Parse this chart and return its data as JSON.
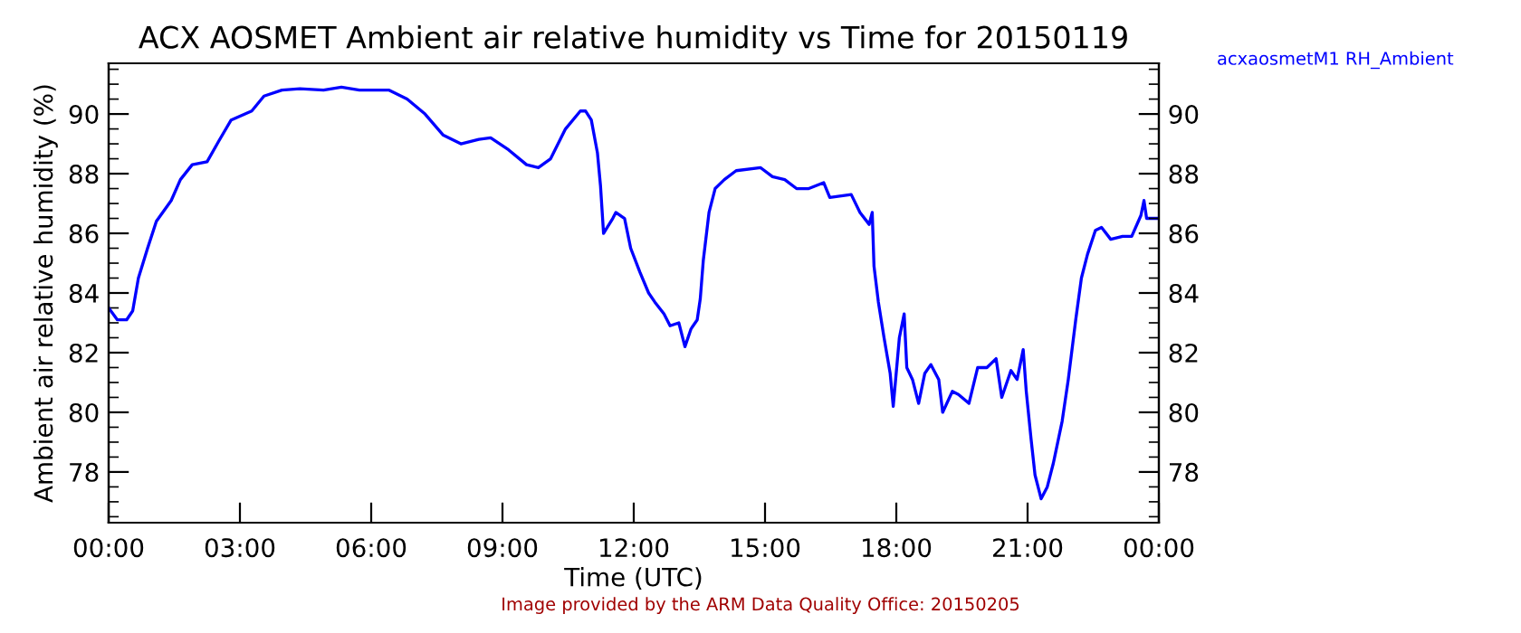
{
  "chart_data": {
    "type": "line",
    "title": "ACX AOSMET Ambient air relative humidity vs Time for 20150119",
    "xlabel": "Time (UTC)",
    "ylabel": "Ambient air relative humidity (%)",
    "annotations": [
      "Image provided by the ARM Data Quality Office: 20150205"
    ],
    "series": [
      {
        "name": "acxaosmetM1 RH_Ambient",
        "color": "#0000ff",
        "x": [
          0,
          0.2,
          0.41,
          0.55,
          0.68,
          0.89,
          1.09,
          1.43,
          1.64,
          1.91,
          2.25,
          2.52,
          2.8,
          3.27,
          3.55,
          3.96,
          4.37,
          4.91,
          5.32,
          5.73,
          6.41,
          6.82,
          7.23,
          7.64,
          8.05,
          8.46,
          8.73,
          9.14,
          9.55,
          9.82,
          10.1,
          10.44,
          10.78,
          10.9,
          11.03,
          11.17,
          11.24,
          11.31,
          11.52,
          11.59,
          11.79,
          11.93,
          12.14,
          12.34,
          12.48,
          12.69,
          12.83,
          13.03,
          13.17,
          13.31,
          13.45,
          13.52,
          13.59,
          13.72,
          13.86,
          14.07,
          14.34,
          14.9,
          15.17,
          15.45,
          15.72,
          16.0,
          16.34,
          16.48,
          16.97,
          17.17,
          17.38,
          17.45,
          17.49,
          17.59,
          17.72,
          17.86,
          17.93,
          18.07,
          18.18,
          18.24,
          18.37,
          18.51,
          18.65,
          18.79,
          18.97,
          19.06,
          19.28,
          19.42,
          19.66,
          19.86,
          20.07,
          20.28,
          20.41,
          20.62,
          20.76,
          20.9,
          20.97,
          21.08,
          21.17,
          21.31,
          21.45,
          21.59,
          21.79,
          21.93,
          22.1,
          22.23,
          22.37,
          22.55,
          22.69,
          22.9,
          23.17,
          23.38,
          23.59,
          23.66,
          23.72,
          24.0
        ],
        "values": [
          83.5,
          83.1,
          83.1,
          83.4,
          84.5,
          85.5,
          86.4,
          87.1,
          87.8,
          88.3,
          88.4,
          89.1,
          89.8,
          90.1,
          90.6,
          90.8,
          90.85,
          90.8,
          90.9,
          90.8,
          90.8,
          90.5,
          90.0,
          89.3,
          89.0,
          89.15,
          89.2,
          88.8,
          88.3,
          88.2,
          88.5,
          89.5,
          90.1,
          90.1,
          89.8,
          88.7,
          87.6,
          86.0,
          86.5,
          86.7,
          86.5,
          85.5,
          84.7,
          84.0,
          83.7,
          83.3,
          82.9,
          83.0,
          82.2,
          82.8,
          83.1,
          83.8,
          85.1,
          86.7,
          87.5,
          87.8,
          88.1,
          88.2,
          87.9,
          87.8,
          87.5,
          87.5,
          87.7,
          87.2,
          87.3,
          86.7,
          86.3,
          86.7,
          84.9,
          83.7,
          82.5,
          81.3,
          80.2,
          82.5,
          83.3,
          81.5,
          81.1,
          80.3,
          81.3,
          81.6,
          81.1,
          80.0,
          80.7,
          80.6,
          80.3,
          81.5,
          81.5,
          81.8,
          80.5,
          81.4,
          81.1,
          82.1,
          80.7,
          79.1,
          77.9,
          77.1,
          77.5,
          78.3,
          79.7,
          81.1,
          83.1,
          84.5,
          85.3,
          86.1,
          86.2,
          85.8,
          85.9,
          85.9,
          86.6,
          87.1,
          86.5,
          86.5
        ]
      }
    ],
    "xlim": [
      0,
      24
    ],
    "xticks": [
      {
        "value": 0,
        "label": "00:00"
      },
      {
        "value": 3,
        "label": "03:00"
      },
      {
        "value": 6,
        "label": "06:00"
      },
      {
        "value": 9,
        "label": "09:00"
      },
      {
        "value": 12,
        "label": "12:00"
      },
      {
        "value": 15,
        "label": "15:00"
      },
      {
        "value": 18,
        "label": "18:00"
      },
      {
        "value": 21,
        "label": "21:00"
      },
      {
        "value": 24,
        "label": "00:00"
      }
    ],
    "ylim": [
      76.3,
      91.7
    ],
    "yticks": [
      78,
      80,
      82,
      84,
      86,
      88,
      90
    ],
    "y2lim": [
      76.3,
      91.7
    ],
    "y2ticks": [
      78,
      80,
      82,
      84,
      86,
      88,
      90
    ],
    "grid": false,
    "legend": false,
    "line_style": "solid",
    "marker": "none"
  }
}
